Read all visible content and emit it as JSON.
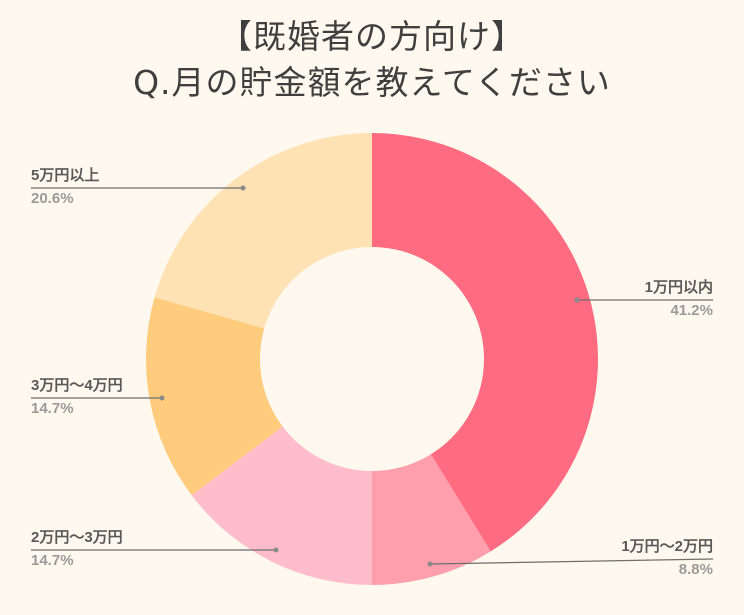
{
  "title": {
    "line1": "【既婚者の方向け】",
    "line2": "Q.月の貯金額を教えてください"
  },
  "colors": {
    "background": "#fff8ee",
    "title_text": "#3f3f3f",
    "label_text": "#595959",
    "pct_text": "#9a9a9a",
    "leader_line": "#6e6e6e"
  },
  "chart_data": {
    "type": "pie",
    "subtype": "donut",
    "title": "【既婚者の方向け】 Q.月の貯金額を教えてください",
    "categories": [
      "1万円以内",
      "1万円〜2万円",
      "2万円〜3万円",
      "3万円〜4万円",
      "5万円以上"
    ],
    "values": [
      41.2,
      8.8,
      14.7,
      14.7,
      20.6
    ],
    "unit": "%",
    "colors": [
      "#ff6b81",
      "#ff9eac",
      "#ffbccb",
      "#ffcc7d",
      "#ffe2b4"
    ],
    "start_angle_deg": 0,
    "direction": "clockwise",
    "legend": "none (leader-line labels)"
  },
  "labels": [
    {
      "name": "1万円以内",
      "pct": "41.2%"
    },
    {
      "name": "1万円〜2万円",
      "pct": "8.8%"
    },
    {
      "name": "2万円〜3万円",
      "pct": "14.7%"
    },
    {
      "name": "3万円〜4万円",
      "pct": "14.7%"
    },
    {
      "name": "5万円以上",
      "pct": "20.6%"
    }
  ]
}
